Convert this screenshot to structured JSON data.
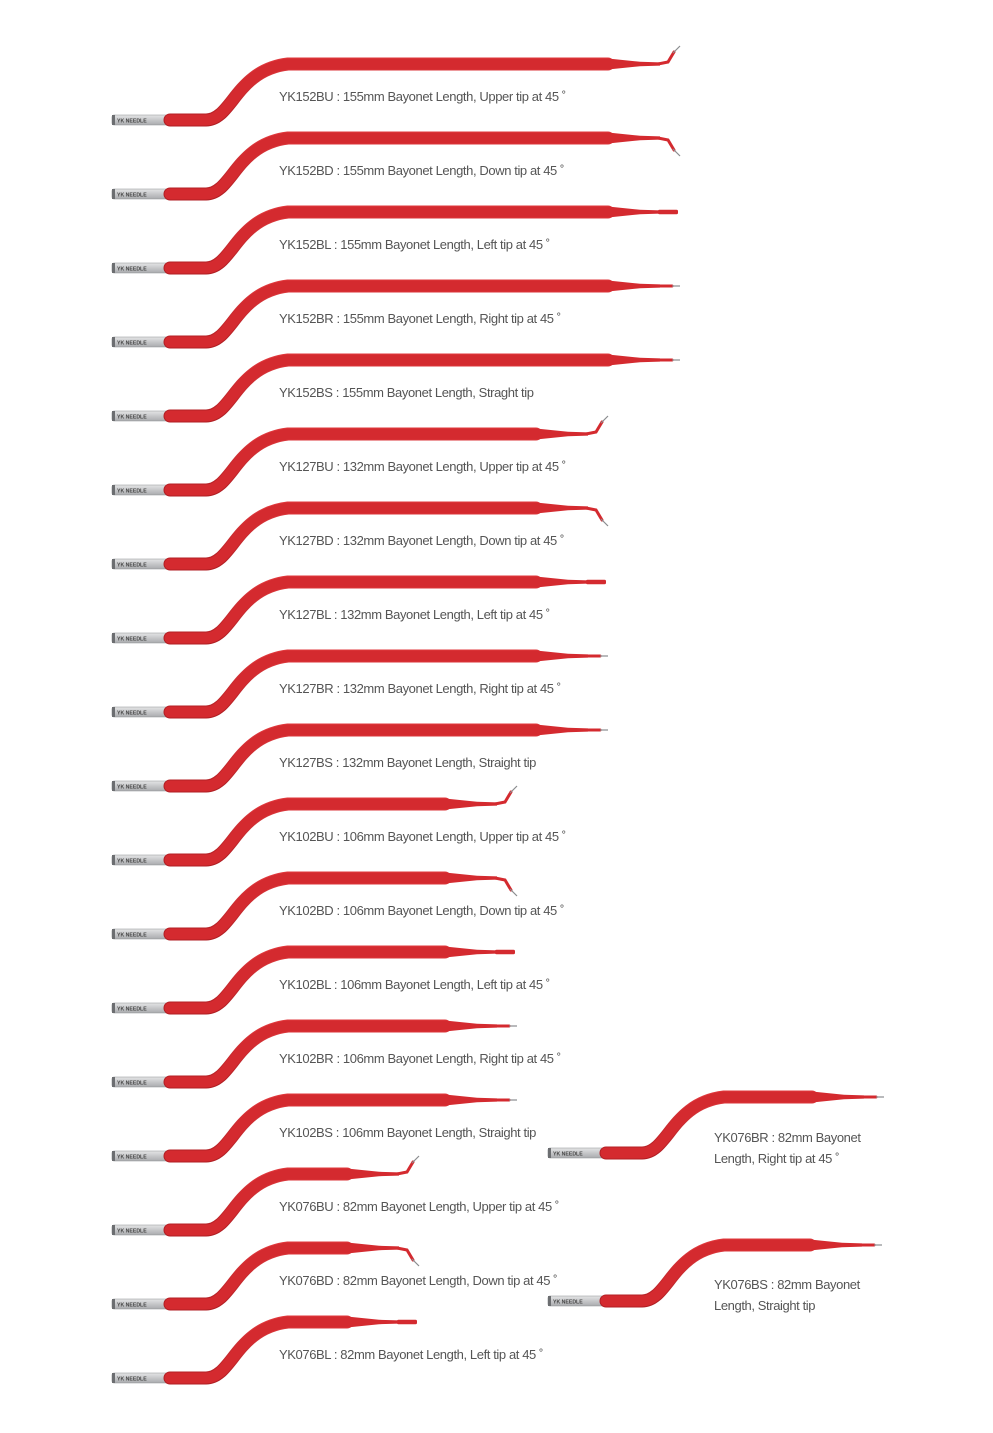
{
  "brand_mark": "YK NEEDLE",
  "colors": {
    "insulation": "#d42a2f",
    "insulation_shadow": "#b01e23",
    "metal": "#a9abae",
    "metal_light": "#e4e5e6",
    "label_text": "#555555"
  },
  "needles": [
    {
      "id": "n1",
      "label": "YK152BU : 155mm Bayonet Length, Upper tip at 45 ˚",
      "series_mm": 155,
      "tip": "up"
    },
    {
      "id": "n2",
      "label": "YK152BD : 155mm Bayonet Length, Down tip at 45 ˚",
      "series_mm": 155,
      "tip": "down"
    },
    {
      "id": "n3",
      "label": "YK152BL : 155mm Bayonet Length, Left tip at 45 ˚",
      "series_mm": 155,
      "tip": "left"
    },
    {
      "id": "n4",
      "label": "YK152BR : 155mm Bayonet Length, Right tip at 45 ˚",
      "series_mm": 155,
      "tip": "right"
    },
    {
      "id": "n5",
      "label": "YK152BS : 155mm Bayonet Length, Straght tip",
      "series_mm": 155,
      "tip": "straight"
    },
    {
      "id": "n6",
      "label": "YK127BU : 132mm Bayonet Length, Upper tip at 45 ˚",
      "series_mm": 132,
      "tip": "up"
    },
    {
      "id": "n7",
      "label": "YK127BD : 132mm Bayonet Length, Down tip at 45 ˚",
      "series_mm": 132,
      "tip": "down"
    },
    {
      "id": "n8",
      "label": "YK127BL : 132mm Bayonet Length, Left tip at 45 ˚",
      "series_mm": 132,
      "tip": "left"
    },
    {
      "id": "n9",
      "label": "YK127BR : 132mm Bayonet Length, Right tip at 45 ˚",
      "series_mm": 132,
      "tip": "right"
    },
    {
      "id": "n10",
      "label": "YK127BS : 132mm Bayonet Length, Straight tip",
      "series_mm": 132,
      "tip": "straight"
    },
    {
      "id": "n11",
      "label": "YK102BU : 106mm Bayonet Length, Upper tip at 45 ˚",
      "series_mm": 106,
      "tip": "up"
    },
    {
      "id": "n12",
      "label": "YK102BD : 106mm Bayonet Length, Down tip at 45 ˚",
      "series_mm": 106,
      "tip": "down"
    },
    {
      "id": "n13",
      "label": "YK102BL : 106mm Bayonet Length, Left tip at 45 ˚",
      "series_mm": 106,
      "tip": "left"
    },
    {
      "id": "n14",
      "label": "YK102BR : 106mm Bayonet Length, Right tip at 45 ˚",
      "series_mm": 106,
      "tip": "right"
    },
    {
      "id": "n15",
      "label": "YK102BS : 106mm Bayonet Length, Straight tip",
      "series_mm": 106,
      "tip": "straight"
    },
    {
      "id": "n16",
      "label": "YK076BU : 82mm Bayonet Length, Upper tip at 45 ˚",
      "series_mm": 82,
      "tip": "up"
    },
    {
      "id": "n17",
      "label": "YK076BD : 82mm Bayonet Length, Down tip at 45 ˚",
      "series_mm": 82,
      "tip": "down"
    },
    {
      "id": "n18",
      "label": "YK076BL : 82mm Bayonet Length, Left tip at 45 ˚",
      "series_mm": 82,
      "tip": "left"
    },
    {
      "id": "n19",
      "label": "YK076BR : 82mm Bayonet Length, Right tip at 45 ˚",
      "series_mm": 82,
      "tip": "right"
    },
    {
      "id": "n20",
      "label": "YK076BS : 82mm Bayonet Length, Straight tip",
      "series_mm": 82,
      "tip": "straight"
    }
  ]
}
